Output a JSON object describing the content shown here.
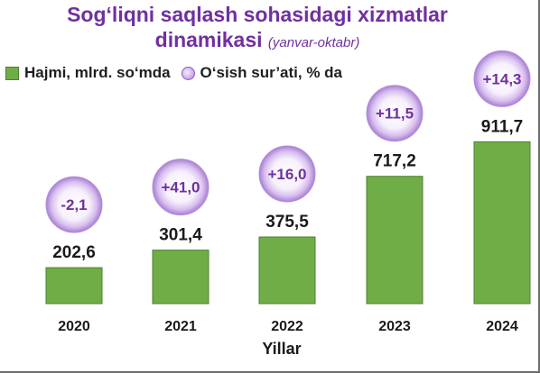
{
  "title": "Sog‘liqni saqlash sohasidagi xizmatlar",
  "title_line2": "dinamikasi",
  "subtitle": "(yanvar-oktabr)",
  "legend": {
    "bar_label": "Hajmi, mlrd. so‘mda",
    "circle_label": "O‘sish sur’ati, % da"
  },
  "colors": {
    "bar": "#70ad47",
    "bar_border": "#4e7f2f",
    "title": "#7030a0",
    "growth_text": "#7030a0"
  },
  "chart_data": {
    "type": "bar",
    "title": "Sog‘liqni saqlash sohasidagi xizmatlar dinamikasi (yanvar-oktabr)",
    "xlabel": "Yillar",
    "ylabel": "",
    "categories": [
      "2020",
      "2021",
      "2022",
      "2023",
      "2024"
    ],
    "series": [
      {
        "name": "Hajmi, mlrd. so‘mda",
        "values": [
          202.6,
          301.4,
          375.5,
          717.2,
          911.7
        ],
        "labels": [
          "202,6",
          "301,4",
          "375,5",
          "717,2",
          "911,7"
        ]
      },
      {
        "name": "O‘sish sur’ati, % da",
        "values": [
          -2.1,
          41.0,
          16.0,
          11.5,
          14.3
        ],
        "labels": [
          "-2,1",
          "+41,0",
          "+16,0",
          "+11,5",
          "+14,3"
        ]
      }
    ],
    "ylim": [
      0,
      1000
    ],
    "grid": false,
    "legend_position": "top-left"
  }
}
